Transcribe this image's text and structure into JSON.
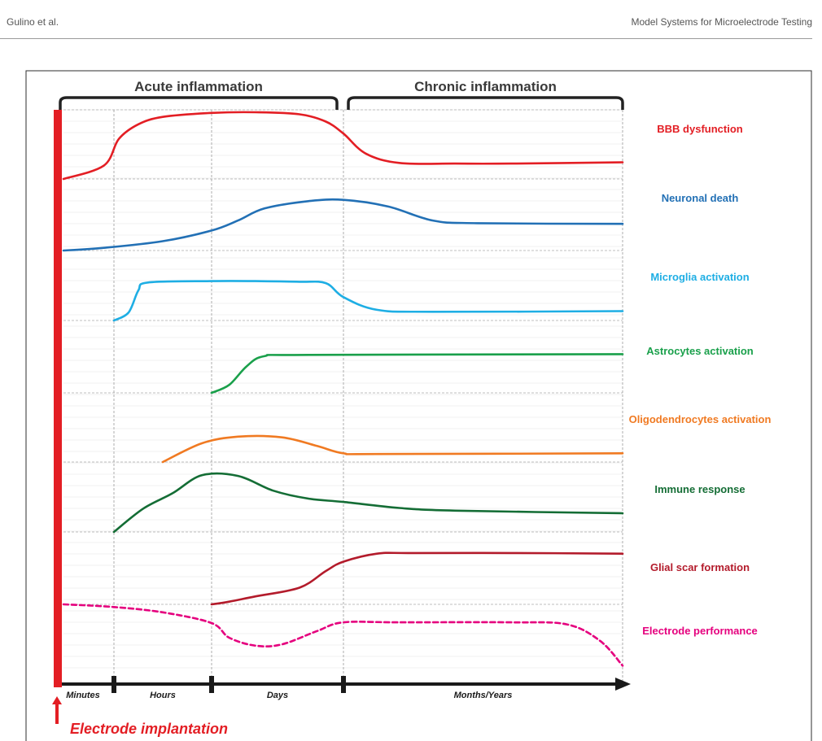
{
  "page_header": {
    "left": "Gulino et al.",
    "right": "Model Systems for Microelectrode Testing"
  },
  "chart_data": {
    "type": "line",
    "title": "",
    "phases": [
      {
        "label": "Acute inflammation",
        "from": 0,
        "to": 3
      },
      {
        "label": "Chronic inflammation",
        "from": 3,
        "to": 4
      }
    ],
    "time_axis": {
      "labels": [
        "Minutes",
        "Hours",
        "Days",
        "Months/Years"
      ],
      "range": [
        0,
        4
      ]
    },
    "implant_label": "Electrode implantation",
    "y_scale": "relative level, 0 = baseline of each row, 1 = row top",
    "grid": true,
    "series": [
      {
        "name": "BBB dysfunction",
        "color": "#e31e24",
        "dashed": false,
        "points": [
          [
            0,
            0.0
          ],
          [
            0.4,
            0.2
          ],
          [
            0.55,
            0.6
          ],
          [
            0.75,
            0.82
          ],
          [
            1.0,
            0.93
          ],
          [
            1.5,
            0.99
          ],
          [
            2.0,
            1.0
          ],
          [
            2.5,
            0.97
          ],
          [
            2.8,
            0.86
          ],
          [
            3.0,
            0.68
          ],
          [
            3.2,
            0.38
          ],
          [
            3.5,
            0.24
          ],
          [
            4.0,
            0.23
          ],
          [
            4.5,
            0.23
          ],
          [
            5.5,
            0.25
          ]
        ]
      },
      {
        "name": "Neuronal death",
        "color": "#2270b5",
        "dashed": false,
        "points": [
          [
            0,
            0.0
          ],
          [
            0.4,
            0.04
          ],
          [
            1.0,
            0.14
          ],
          [
            1.5,
            0.3
          ],
          [
            1.8,
            0.45
          ],
          [
            2.1,
            0.63
          ],
          [
            2.6,
            0.74
          ],
          [
            3.0,
            0.76
          ],
          [
            3.4,
            0.66
          ],
          [
            3.8,
            0.45
          ],
          [
            4.2,
            0.41
          ],
          [
            5.5,
            0.4
          ]
        ]
      },
      {
        "name": "Microglia activation",
        "color": "#1eaee4",
        "dashed": false,
        "points": [
          [
            0.5,
            0.0
          ],
          [
            0.65,
            0.12
          ],
          [
            0.75,
            0.45
          ],
          [
            0.85,
            0.57
          ],
          [
            1.5,
            0.59
          ],
          [
            2.0,
            0.59
          ],
          [
            2.5,
            0.58
          ],
          [
            2.8,
            0.56
          ],
          [
            3.0,
            0.35
          ],
          [
            3.3,
            0.16
          ],
          [
            3.8,
            0.13
          ],
          [
            5.5,
            0.14
          ]
        ]
      },
      {
        "name": "Astrocytes activation",
        "color": "#1aa04b",
        "dashed": false,
        "points": [
          [
            1.5,
            0.0
          ],
          [
            1.7,
            0.12
          ],
          [
            1.9,
            0.4
          ],
          [
            2.1,
            0.55
          ],
          [
            2.6,
            0.57
          ],
          [
            5.5,
            0.58
          ]
        ]
      },
      {
        "name": "Oligodendrocytes activation",
        "color": "#f07a22",
        "dashed": false,
        "points": [
          [
            1.0,
            0.0
          ],
          [
            1.4,
            0.28
          ],
          [
            1.8,
            0.38
          ],
          [
            2.3,
            0.37
          ],
          [
            2.7,
            0.24
          ],
          [
            3.0,
            0.13
          ],
          [
            3.3,
            0.12
          ],
          [
            5.5,
            0.13
          ]
        ]
      },
      {
        "name": "Immune response",
        "color": "#146d35",
        "dashed": false,
        "points": [
          [
            0.5,
            0.0
          ],
          [
            0.8,
            0.35
          ],
          [
            1.1,
            0.58
          ],
          [
            1.4,
            0.85
          ],
          [
            1.8,
            0.84
          ],
          [
            2.2,
            0.62
          ],
          [
            2.6,
            0.5
          ],
          [
            3.0,
            0.45
          ],
          [
            3.5,
            0.36
          ],
          [
            4.0,
            0.32
          ],
          [
            5.5,
            0.28
          ]
        ]
      },
      {
        "name": "Glial scar formation",
        "color": "#b31b2b",
        "dashed": false,
        "points": [
          [
            1.5,
            0.0
          ],
          [
            1.7,
            0.04
          ],
          [
            2.0,
            0.12
          ],
          [
            2.5,
            0.25
          ],
          [
            2.8,
            0.5
          ],
          [
            3.0,
            0.64
          ],
          [
            3.3,
            0.76
          ],
          [
            3.6,
            0.77
          ],
          [
            4.5,
            0.77
          ],
          [
            5.5,
            0.76
          ]
        ]
      },
      {
        "name": "Electrode performance",
        "color": "#e5007e",
        "dashed": true,
        "points": [
          [
            0,
            0.0
          ],
          [
            0.5,
            -0.04
          ],
          [
            1.0,
            -0.12
          ],
          [
            1.5,
            -0.28
          ],
          [
            1.7,
            -0.5
          ],
          [
            2.0,
            -0.62
          ],
          [
            2.3,
            -0.6
          ],
          [
            2.7,
            -0.4
          ],
          [
            3.0,
            -0.27
          ],
          [
            3.5,
            -0.27
          ],
          [
            4.5,
            -0.27
          ],
          [
            5.0,
            -0.3
          ],
          [
            5.3,
            -0.55
          ],
          [
            5.5,
            -0.92
          ]
        ]
      }
    ]
  }
}
